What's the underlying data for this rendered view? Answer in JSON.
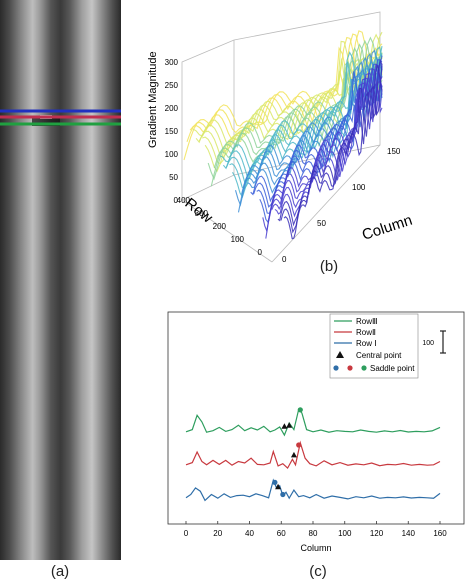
{
  "panel_a": {
    "caption": "(a)",
    "marker_lines": [
      {
        "name": "Row I",
        "color": "#2030c0"
      },
      {
        "name": "Row II",
        "color": "#c03050"
      },
      {
        "name": "Row III",
        "color": "#20a040"
      }
    ]
  },
  "panel_b": {
    "caption": "(b)",
    "z_label": "Gradient Magnitude",
    "z_ticks": [
      "0",
      "50",
      "100",
      "150",
      "200",
      "250",
      "300"
    ],
    "row_label": "Row",
    "row_ticks": [
      "0",
      "100",
      "200",
      "300",
      "400"
    ],
    "col_label": "Column",
    "col_ticks": [
      "0",
      "50",
      "100",
      "150"
    ]
  },
  "panel_c": {
    "caption": "(c)",
    "scale_bar_label": "100",
    "legend": {
      "row3": "RowⅢ",
      "row2": "RowⅡ",
      "row1": "Row Ⅰ",
      "central": "Central point",
      "saddle": "Saddle point"
    }
  },
  "chart_data": {
    "type": "line",
    "xlabel": "Column",
    "x_ticks": [
      0,
      20,
      40,
      60,
      80,
      100,
      120,
      140,
      160
    ],
    "xlim": [
      0,
      160
    ],
    "y_axis": "offset traces, scale bar = 100",
    "series": [
      {
        "name": "RowⅢ",
        "color": "#2e9e5e",
        "offset": 300,
        "x": [
          0,
          4,
          7,
          10,
          13,
          17,
          21,
          25,
          29,
          33,
          37,
          41,
          45,
          49,
          53,
          56,
          59,
          62,
          65,
          68,
          71,
          73,
          76,
          80,
          85,
          90,
          95,
          100,
          105,
          110,
          115,
          120,
          125,
          130,
          135,
          140,
          145,
          150,
          155,
          160
        ],
        "y": [
          10,
          20,
          85,
          55,
          8,
          15,
          30,
          12,
          20,
          40,
          15,
          28,
          18,
          35,
          10,
          18,
          32,
          -5,
          50,
          20,
          112,
          95,
          20,
          10,
          18,
          8,
          15,
          12,
          10,
          18,
          12,
          8,
          14,
          10,
          16,
          9,
          12,
          10,
          14,
          30
        ]
      },
      {
        "name": "RowⅡ",
        "color": "#c8393f",
        "offset": 150,
        "x": [
          0,
          4,
          7,
          10,
          13,
          17,
          21,
          25,
          29,
          33,
          37,
          41,
          45,
          49,
          53,
          55,
          58,
          61,
          64,
          67,
          69,
          72,
          75,
          78,
          82,
          87,
          92,
          97,
          102,
          107,
          112,
          117,
          122,
          127,
          132,
          137,
          142,
          147,
          152,
          156,
          160
        ],
        "y": [
          10,
          20,
          68,
          25,
          10,
          30,
          12,
          30,
          8,
          25,
          18,
          40,
          12,
          10,
          18,
          70,
          5,
          15,
          -5,
          35,
          10,
          110,
          40,
          15,
          5,
          28,
          10,
          20,
          8,
          14,
          10,
          18,
          6,
          12,
          10,
          16,
          8,
          12,
          8,
          10,
          25
        ]
      },
      {
        "name": "Row Ⅰ",
        "color": "#2f6ea8",
        "offset": 0,
        "x": [
          0,
          3,
          6,
          9,
          12,
          16,
          20,
          24,
          28,
          32,
          36,
          40,
          44,
          48,
          52,
          55,
          57,
          59,
          61,
          63,
          65,
          68,
          71,
          74,
          78,
          82,
          87,
          92,
          97,
          102,
          107,
          112,
          117,
          122,
          127,
          132,
          137,
          142,
          147,
          152,
          156,
          160
        ],
        "y": [
          10,
          25,
          55,
          40,
          -2,
          25,
          8,
          28,
          12,
          20,
          22,
          15,
          28,
          20,
          10,
          90,
          55,
          65,
          20,
          35,
          8,
          45,
          15,
          20,
          10,
          25,
          8,
          18,
          12,
          5,
          15,
          10,
          18,
          8,
          12,
          10,
          14,
          9,
          12,
          10,
          8,
          30
        ]
      }
    ],
    "central_points": [
      {
        "series": "RowⅢ",
        "x": 62,
        "y": 35
      },
      {
        "series": "RowⅢ",
        "x": 65,
        "y": 40
      },
      {
        "series": "RowⅡ",
        "x": 68,
        "y": 55
      },
      {
        "series": "Row Ⅰ",
        "x": 58,
        "y": 60
      }
    ],
    "saddle_points": [
      {
        "series": "RowⅢ",
        "x": 72,
        "y": 110,
        "color": "#2e9e5e"
      },
      {
        "series": "RowⅡ",
        "x": 71,
        "y": 100,
        "color": "#c8393f"
      },
      {
        "series": "Row Ⅰ",
        "x": 56,
        "y": 80,
        "color": "#2f6ea8"
      },
      {
        "series": "Row Ⅰ",
        "x": 61,
        "y": 25,
        "color": "#2f6ea8"
      }
    ]
  }
}
